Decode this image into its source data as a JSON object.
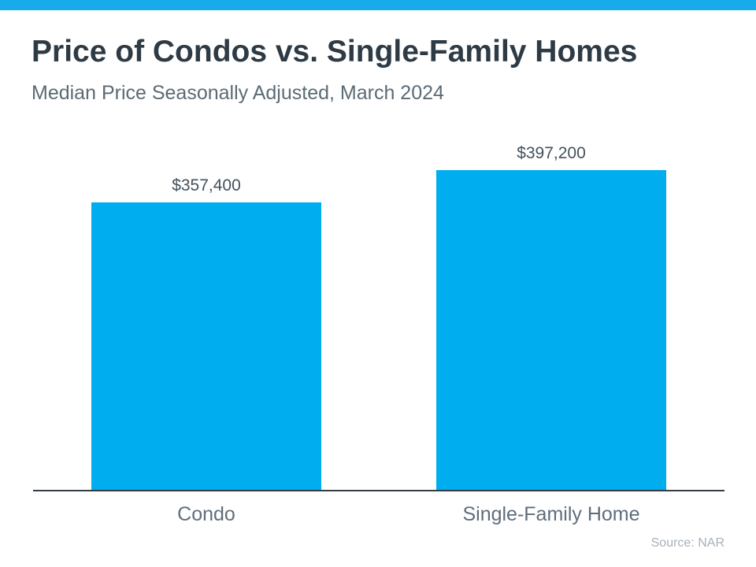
{
  "chart_data": {
    "type": "bar",
    "title": "Price of Condos vs. Single-Family Homes",
    "subtitle": "Median Price Seasonally Adjusted, March 2024",
    "categories": [
      "Condo",
      "Single-Family Home"
    ],
    "values": [
      357400,
      397200
    ],
    "value_labels": [
      "$357,400",
      "$397,200"
    ],
    "source": "Source: NAR",
    "xlabel": "",
    "ylabel": "",
    "ylim": [
      0,
      400000
    ],
    "grid": false,
    "legend": false,
    "bar_color": "#00AEEF",
    "accent_bar_color": "#17ABEC",
    "axis_color": "#333C44",
    "title_color": "#2E3A44",
    "subtitle_color": "#5B6B75",
    "value_label_color": "#44515C",
    "category_label_color": "#5E6E7C",
    "source_color": "#A7B0B9"
  }
}
